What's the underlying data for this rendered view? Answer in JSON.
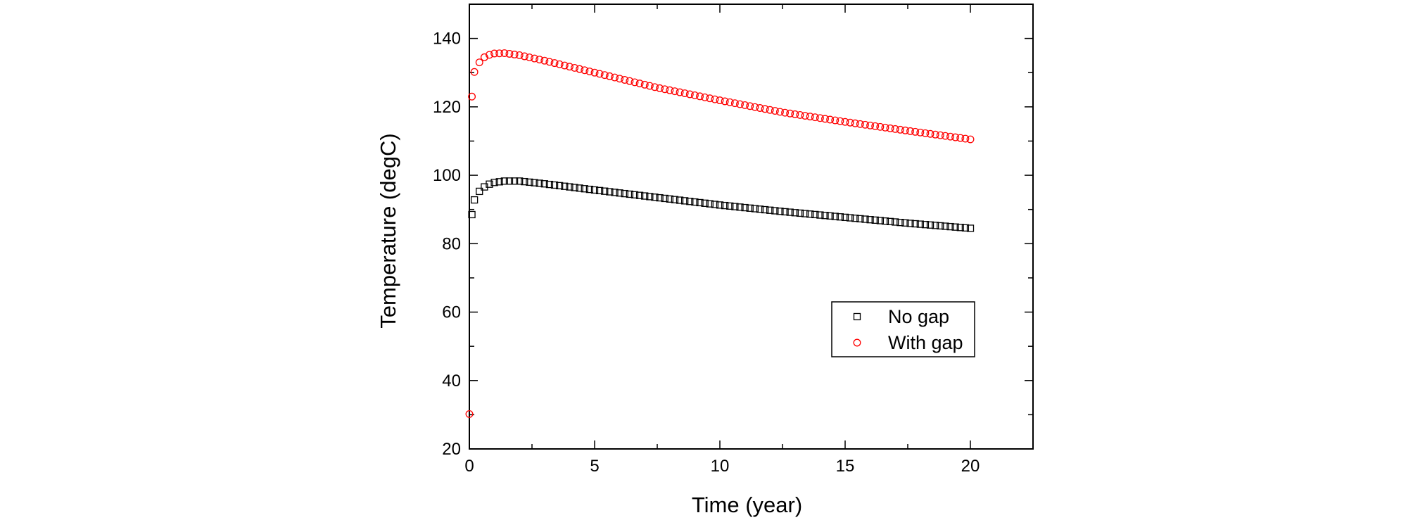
{
  "chart_data": {
    "type": "scatter",
    "title": "",
    "xlabel": "Time (year)",
    "ylabel": "Temperature (degC)",
    "xlim": [
      0,
      22.5
    ],
    "ylim": [
      20,
      150
    ],
    "xticks": [
      0,
      5,
      10,
      15,
      20
    ],
    "yticks": [
      20,
      40,
      60,
      80,
      100,
      120,
      140
    ],
    "grid": false,
    "legend": {
      "position": "bottom-right"
    },
    "x_step": 0.2,
    "series": [
      {
        "name": "No gap",
        "marker": "square",
        "color": "#000000",
        "anchors": [
          [
            0.1,
            88.5
          ],
          [
            0.2,
            92.8
          ],
          [
            0.4,
            95.3
          ],
          [
            0.6,
            96.6
          ],
          [
            0.8,
            97.4
          ],
          [
            1.0,
            97.9
          ],
          [
            1.4,
            98.3
          ],
          [
            2.0,
            98.3
          ],
          [
            3.0,
            97.5
          ],
          [
            5.0,
            95.7
          ],
          [
            7.5,
            93.5
          ],
          [
            10.0,
            91.3
          ],
          [
            12.5,
            89.4
          ],
          [
            15.0,
            87.7
          ],
          [
            17.5,
            86.0
          ],
          [
            20.0,
            84.5
          ]
        ]
      },
      {
        "name": "With gap",
        "marker": "circle",
        "color": "#ff0000",
        "anchors": [
          [
            0.0,
            30.2
          ],
          [
            0.1,
            123.0
          ],
          [
            0.2,
            130.2
          ],
          [
            0.4,
            133.0
          ],
          [
            0.6,
            134.5
          ],
          [
            0.8,
            135.2
          ],
          [
            1.0,
            135.6
          ],
          [
            1.4,
            135.7
          ],
          [
            2.0,
            135.1
          ],
          [
            3.0,
            133.5
          ],
          [
            5.0,
            130.0
          ],
          [
            7.5,
            125.6
          ],
          [
            10.0,
            121.9
          ],
          [
            12.5,
            118.4
          ],
          [
            15.0,
            115.6
          ],
          [
            17.5,
            113.0
          ],
          [
            20.0,
            110.5
          ]
        ]
      }
    ]
  }
}
